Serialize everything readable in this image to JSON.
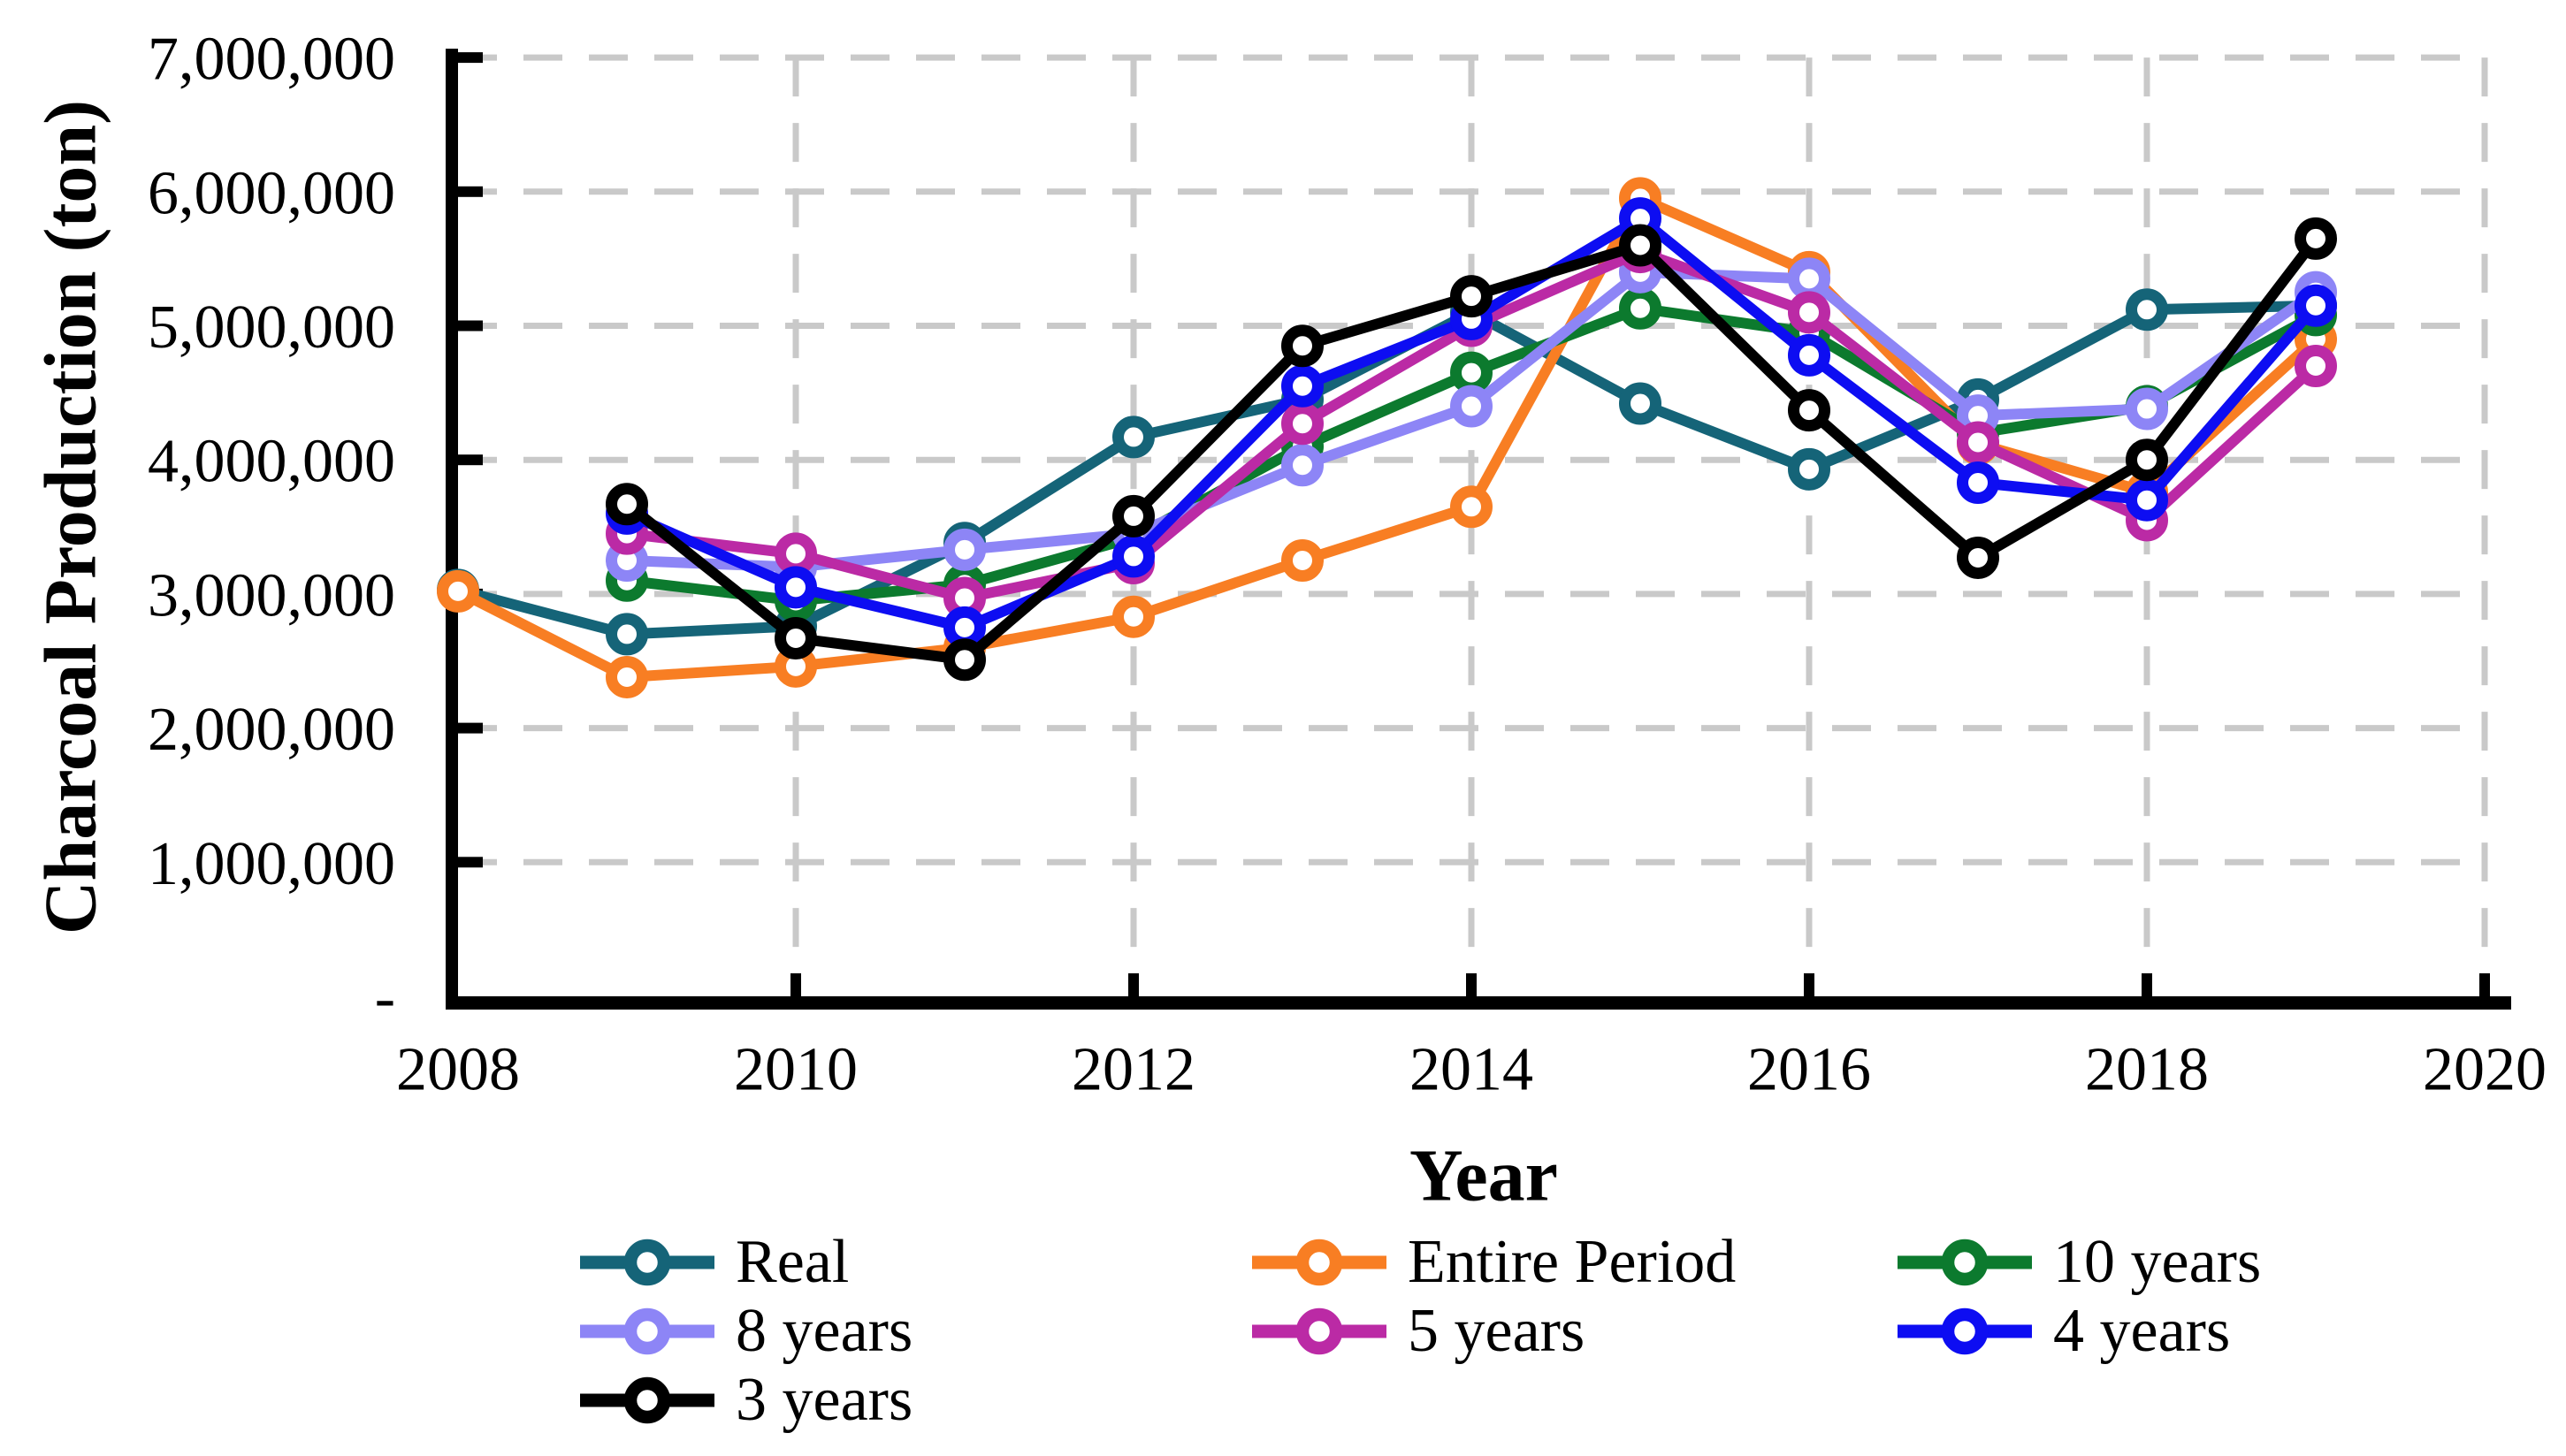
{
  "figure": {
    "background": "#FFFFFF",
    "grid_color": "#C9C9C9",
    "axis_color": "#000000"
  },
  "chart_data": {
    "type": "line",
    "title": "",
    "xlabel": "Year",
    "ylabel": "Charcoal Production (ton)",
    "xlim": [
      2008,
      2020
    ],
    "ylim": [
      0,
      7000000
    ],
    "grid": {
      "show": true,
      "style": "dashed",
      "color": "#C9C9C9"
    },
    "legend_position": "bottom",
    "x_ticks": [
      2008,
      2010,
      2012,
      2014,
      2016,
      2018,
      2020
    ],
    "y_tick_values": [
      0,
      1000000,
      2000000,
      3000000,
      4000000,
      5000000,
      6000000,
      7000000
    ],
    "y_tick_labels": [
      "-",
      "1,000,000",
      "2,000,000",
      "3,000,000",
      "4,000,000",
      "5,000,000",
      "6,000,000",
      "7,000,000"
    ],
    "marker": "open-circle",
    "series": [
      {
        "name": "Real",
        "color": "#156478",
        "years": [
          2008,
          2009,
          2010,
          2011,
          2012,
          2013,
          2014,
          2015,
          2016,
          2017,
          2018,
          2019
        ],
        "values": [
          3030000,
          2700000,
          2760000,
          3380000,
          4170000,
          4450000,
          5100000,
          4420000,
          3930000,
          4450000,
          5120000,
          5150000
        ]
      },
      {
        "name": "Entire Period",
        "color": "#F87E23",
        "years": [
          2008,
          2009,
          2010,
          2011,
          2012,
          2013,
          2014,
          2015,
          2016,
          2017,
          2018,
          2019
        ],
        "values": [
          3020000,
          2380000,
          2460000,
          2600000,
          2830000,
          3250000,
          3650000,
          5950000,
          5400000,
          4120000,
          3760000,
          4900000
        ]
      },
      {
        "name": "10 years",
        "color": "#0C7A2E",
        "years": [
          2009,
          2010,
          2011,
          2012,
          2013,
          2014,
          2015,
          2016,
          2017,
          2018,
          2019
        ],
        "values": [
          3100000,
          2950000,
          3070000,
          3420000,
          4100000,
          4650000,
          5130000,
          4950000,
          4200000,
          4400000,
          5080000
        ]
      },
      {
        "name": "8 years",
        "color": "#8D85F6",
        "years": [
          2009,
          2010,
          2011,
          2012,
          2013,
          2014,
          2015,
          2016,
          2017,
          2018,
          2019
        ],
        "values": [
          3250000,
          3200000,
          3330000,
          3450000,
          3960000,
          4400000,
          5400000,
          5350000,
          4330000,
          4380000,
          5250000
        ]
      },
      {
        "name": "5 years",
        "color": "#BB2AA5",
        "years": [
          2009,
          2010,
          2011,
          2012,
          2013,
          2014,
          2015,
          2016,
          2017,
          2018,
          2019
        ],
        "values": [
          3450000,
          3300000,
          2970000,
          3230000,
          4270000,
          5000000,
          5550000,
          5100000,
          4130000,
          3550000,
          4700000
        ]
      },
      {
        "name": "4 years",
        "color": "#0D0DF2",
        "years": [
          2009,
          2010,
          2011,
          2012,
          2013,
          2014,
          2015,
          2016,
          2017,
          2018,
          2019
        ],
        "values": [
          3600000,
          3050000,
          2750000,
          3280000,
          4550000,
          5050000,
          5800000,
          4780000,
          3830000,
          3700000,
          5150000
        ]
      },
      {
        "name": "3 years",
        "color": "#000000",
        "years": [
          2009,
          2010,
          2011,
          2012,
          2013,
          2014,
          2015,
          2016,
          2017,
          2018,
          2019
        ],
        "values": [
          3670000,
          2670000,
          2510000,
          3580000,
          4850000,
          5220000,
          5600000,
          4370000,
          3270000,
          4000000,
          5650000
        ]
      }
    ]
  }
}
